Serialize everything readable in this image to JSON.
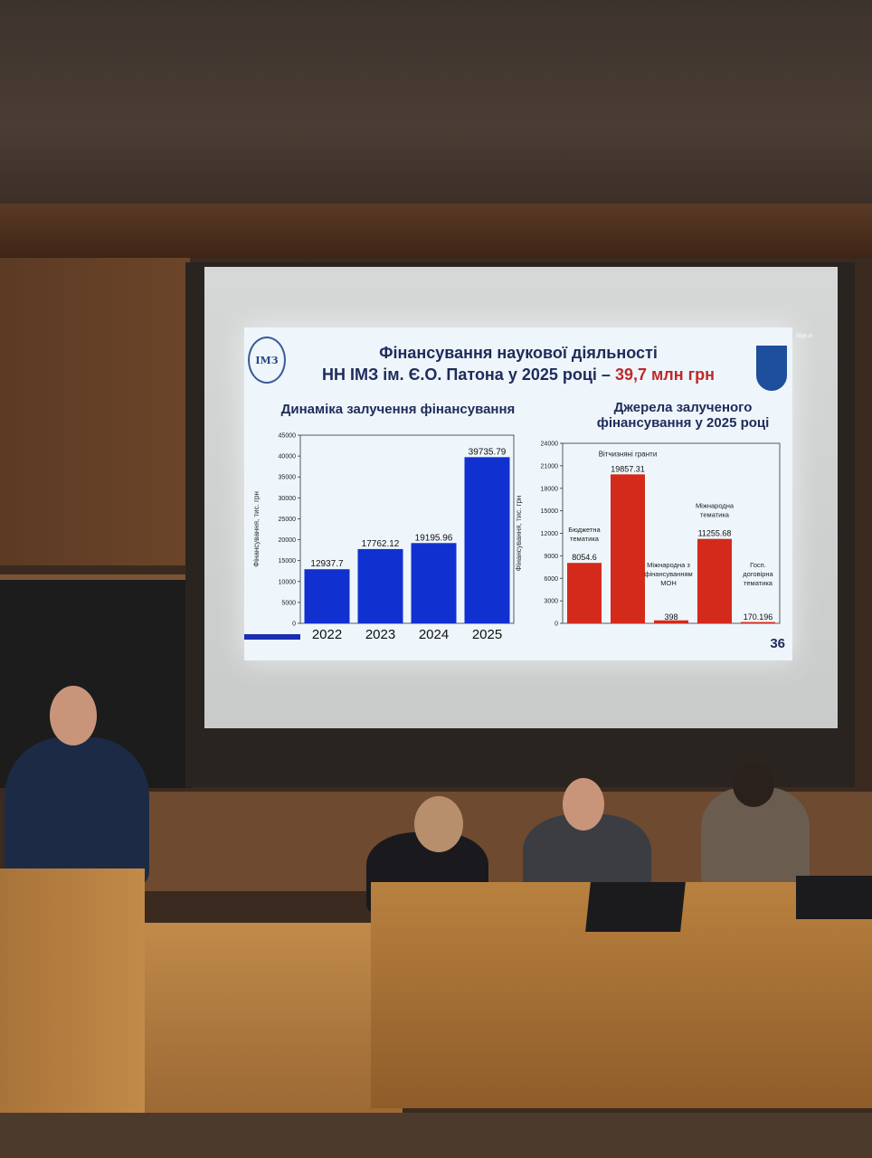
{
  "slide": {
    "title_line1": "Фінансування наукової діяльності",
    "title_line2": "НН ІМЗ ім. Є.О. Патона у 2025 році – ",
    "title_highlight": "39,7 млн грн",
    "logo_left": "ІМЗ",
    "slide_number": "36",
    "sign_in": "Sign in",
    "colors": {
      "accent_red": "#c0282a",
      "bar_blue": "#1030d0",
      "bar_red": "#d42a1c",
      "title": "#1f2b5a"
    }
  },
  "chart_data": [
    {
      "type": "bar",
      "title": "Динаміка залучення фінансування",
      "xlabel": "",
      "ylabel": "Фінансування, тис. грн",
      "categories": [
        "2022",
        "2023",
        "2024",
        "2025"
      ],
      "values": [
        12937.7,
        17762.12,
        19195.96,
        39735.79
      ],
      "data_labels": [
        "12937.7",
        "17762.12",
        "19195.96",
        "39735.79"
      ],
      "ylim": [
        0,
        45000
      ],
      "yticks": [
        "0",
        "5000",
        "10000",
        "15000",
        "20000",
        "25000",
        "30000",
        "35000",
        "40000",
        "45000"
      ],
      "grid": false
    },
    {
      "type": "bar",
      "title": "Джерела залученого фінансування у 2025 році",
      "xlabel": "",
      "ylabel": "Фінансування, тис. грн",
      "categories": [
        "Бюджетна тематика",
        "Вітчизняні гранти",
        "Міжнародна з фінансуванням МОН",
        "Міжнародна тематика",
        "Госп. договірна тематика"
      ],
      "values": [
        8054.6,
        19857.31,
        398,
        11255.68,
        170.196
      ],
      "data_labels": [
        "8054.6",
        "19857.31",
        "398",
        "11255.68",
        "170.196"
      ],
      "ylim": [
        0,
        24000
      ],
      "yticks": [
        "0",
        "3000",
        "6000",
        "9000",
        "12000",
        "15000",
        "18000",
        "21000",
        "24000"
      ],
      "grid": false
    }
  ]
}
